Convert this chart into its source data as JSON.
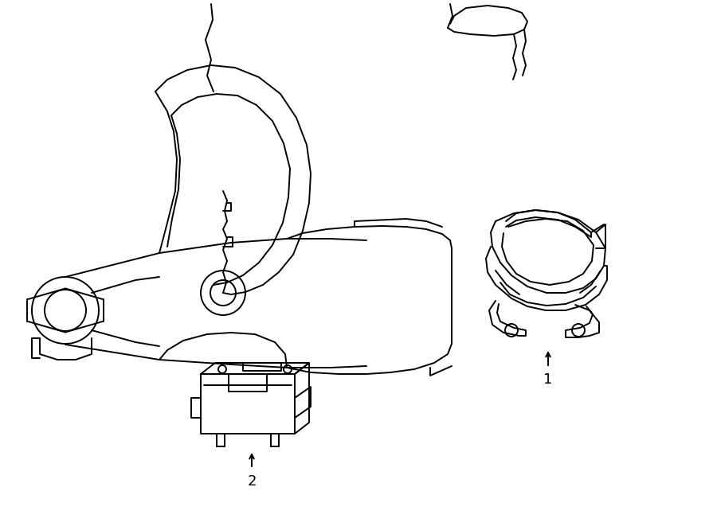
{
  "background_color": "#ffffff",
  "line_color": "#000000",
  "line_width": 1.4,
  "fig_width": 9.0,
  "fig_height": 6.61,
  "dpi": 100,
  "label_1": "1",
  "label_2": "2",
  "label_fontsize": 13
}
